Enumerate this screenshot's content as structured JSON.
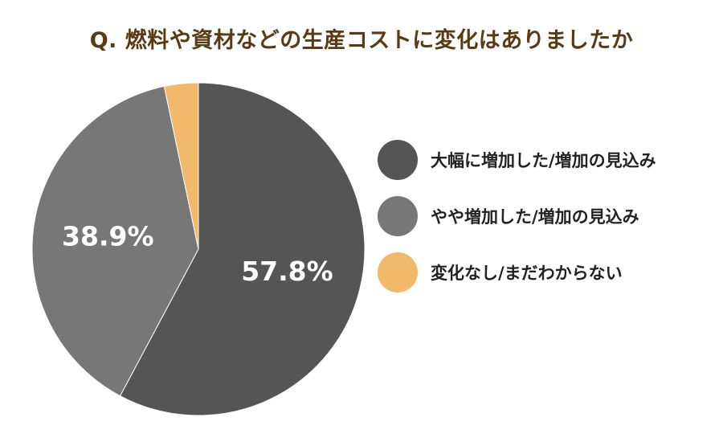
{
  "chart_data": {
    "type": "pie",
    "title": "Q. 燃料や資材などの生産コストに変化はありましたか",
    "legend_position": "right",
    "slices": [
      {
        "label": "大幅に増加した/増加の見込み",
        "value": 57.8,
        "display": "57.8%",
        "color": "#555555"
      },
      {
        "label": "やや増加した/増加の見込み",
        "value": 38.9,
        "display": "38.9%",
        "color": "#777777"
      },
      {
        "label": "変化なし/まだわからない",
        "value": 3.3,
        "display": "",
        "color": "#f2b96b"
      }
    ]
  }
}
